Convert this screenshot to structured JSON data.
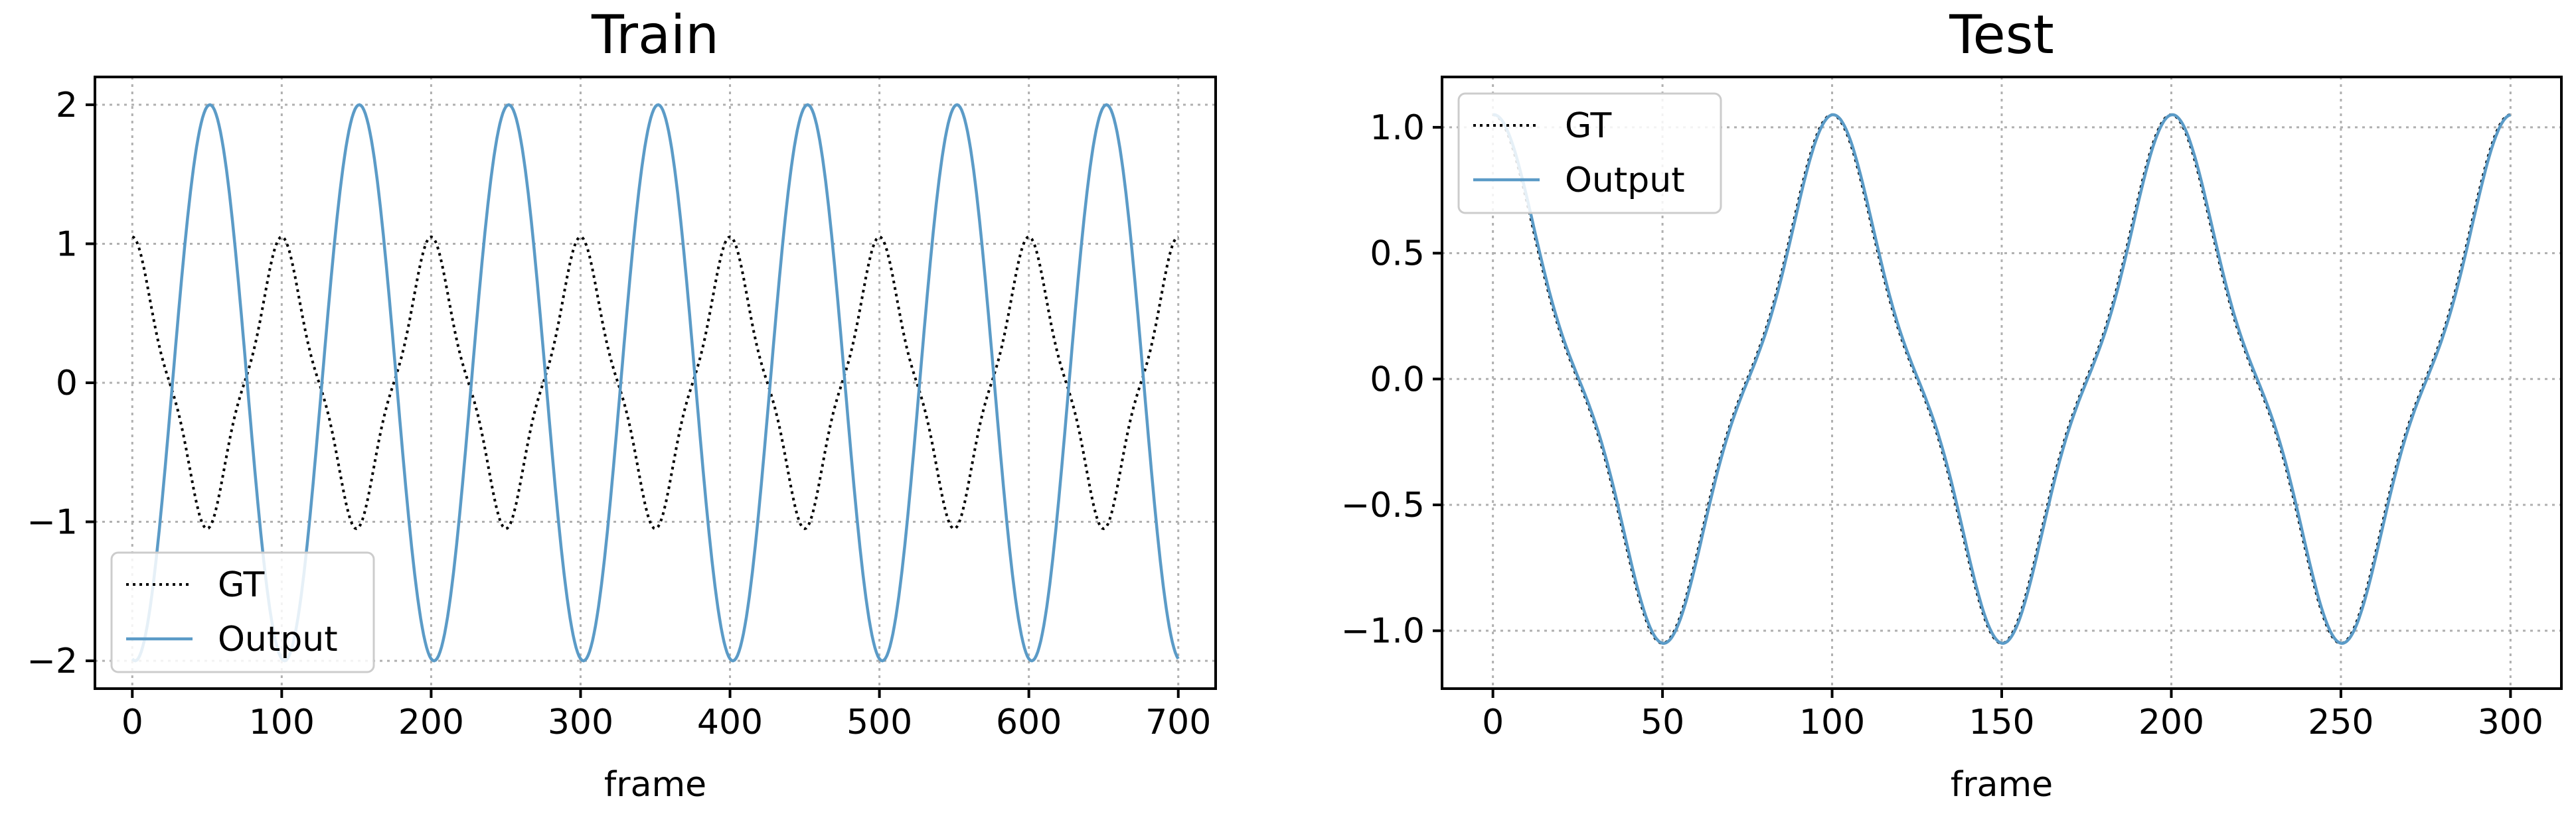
{
  "colors": {
    "gt": "#000000",
    "output": "#5b9bc7"
  },
  "chart_data": [
    {
      "type": "line",
      "title": "Train",
      "xlabel": "frame",
      "ylabel": "",
      "xlim": [
        -25,
        725
      ],
      "ylim": [
        -2.2,
        2.2
      ],
      "xticks": [
        0,
        100,
        200,
        300,
        400,
        500,
        600,
        700
      ],
      "yticks": [
        -2,
        -1,
        0,
        1,
        2
      ],
      "grid": true,
      "legend_loc": "lower-left",
      "x_range": [
        0,
        700
      ],
      "series": [
        {
          "name": "GT",
          "style": "dotted",
          "color": "#000000",
          "period": 100,
          "phase": 0.0,
          "terms": [
            [
              1,
              0.92
            ],
            [
              3,
              0.13
            ]
          ]
        },
        {
          "name": "Output",
          "style": "solid",
          "color": "#5b9bc7",
          "period": 100,
          "phase": -0.12,
          "terms": [
            [
              1,
              -2.0
            ]
          ]
        }
      ]
    },
    {
      "type": "line",
      "title": "Test",
      "xlabel": "frame",
      "ylabel": "",
      "xlim": [
        -15,
        315
      ],
      "ylim": [
        -1.23,
        1.2
      ],
      "xticks": [
        0,
        50,
        100,
        150,
        200,
        250,
        300
      ],
      "yticks": [
        -1.0,
        -0.5,
        0.0,
        0.5,
        1.0
      ],
      "grid": true,
      "legend_loc": "upper-left",
      "x_range": [
        0,
        300
      ],
      "series": [
        {
          "name": "GT",
          "style": "dotted",
          "color": "#000000",
          "period": 100,
          "phase": 0.0,
          "terms": [
            [
              1,
              0.92
            ],
            [
              3,
              0.13
            ]
          ]
        },
        {
          "name": "Output",
          "style": "solid",
          "color": "#5b9bc7",
          "period": 100,
          "phase": -0.02,
          "terms": [
            [
              1,
              0.92
            ],
            [
              3,
              0.13
            ]
          ]
        }
      ]
    }
  ]
}
